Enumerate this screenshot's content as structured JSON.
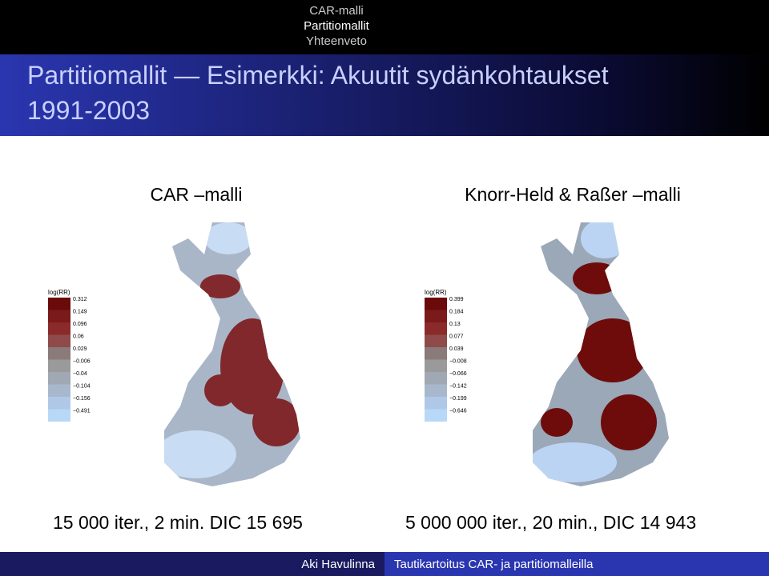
{
  "header": {
    "nav": [
      "CAR-malli",
      "Partitiomallit",
      "Yhteenveto"
    ],
    "title_line1": "Partitiomallit — Esimerkki: Akuutit sydänkohtaukset",
    "title_line2": "1991-2003"
  },
  "columns": [
    {
      "heading": "CAR –malli",
      "legend_title": "log(RR)",
      "legend": [
        "0.312",
        "0.149",
        "0.096",
        "0.06",
        "0.029",
        "−0.006",
        "−0.04",
        "−0.104",
        "−0.156",
        "−0.491"
      ],
      "caption": "15 000 iter., 2 min. DIC 15 695"
    },
    {
      "heading": "Knorr-Held & Raßer –malli",
      "legend_title": "log(RR)",
      "legend": [
        "0.399",
        "0.184",
        "0.13",
        "0.077",
        "0.039",
        "−0.008",
        "−0.066",
        "−0.142",
        "−0.199",
        "−0.646"
      ],
      "caption": "5 000 000 iter., 20 min., DIC 14 943"
    }
  ],
  "footer": {
    "author": "Aki Havulinna",
    "talk": "Tautikartoitus CAR- ja partitiomalleilla"
  }
}
